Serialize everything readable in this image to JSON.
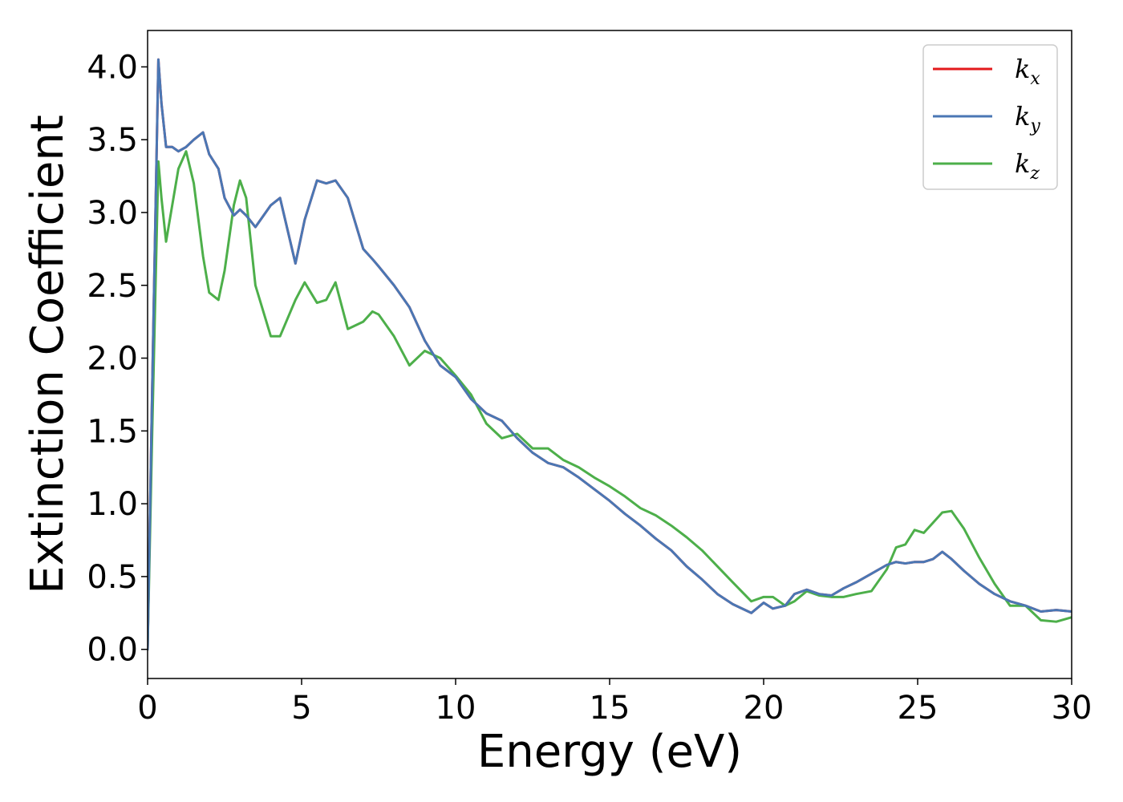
{
  "chart_data": {
    "type": "line",
    "title": "",
    "xlabel": "Energy (eV)",
    "ylabel": "Extinction Coefficient",
    "xlim": [
      0,
      30
    ],
    "ylim": [
      -0.2,
      4.25
    ],
    "xticks": [
      0,
      5,
      10,
      15,
      20,
      25,
      30
    ],
    "xtick_labels": [
      "0",
      "5",
      "10",
      "15",
      "20",
      "25",
      "30"
    ],
    "yticks": [
      0.0,
      0.5,
      1.0,
      1.5,
      2.0,
      2.5,
      3.0,
      3.5,
      4.0
    ],
    "ytick_labels": [
      "0.0",
      "0.5",
      "1.0",
      "1.5",
      "2.0",
      "2.5",
      "3.0",
      "3.5",
      "4.0"
    ],
    "grid": false,
    "legend_position": "top-right",
    "x": [
      0,
      0.15,
      0.35,
      0.45,
      0.6,
      0.8,
      1.0,
      1.25,
      1.5,
      1.8,
      2.0,
      2.3,
      2.5,
      2.8,
      3.0,
      3.2,
      3.5,
      4.0,
      4.3,
      4.8,
      5.1,
      5.5,
      5.8,
      6.1,
      6.5,
      7.0,
      7.3,
      7.5,
      8.0,
      8.5,
      9.0,
      9.5,
      10.0,
      10.5,
      11.0,
      11.5,
      12.0,
      12.5,
      13.0,
      13.5,
      14.0,
      14.5,
      15.0,
      15.5,
      16.0,
      16.5,
      17.0,
      17.5,
      18.0,
      18.5,
      19.0,
      19.6,
      20.0,
      20.3,
      20.7,
      21.0,
      21.4,
      21.8,
      22.2,
      22.6,
      23.0,
      23.5,
      24.0,
      24.3,
      24.6,
      24.9,
      25.2,
      25.5,
      25.8,
      26.1,
      26.5,
      27.0,
      27.5,
      28.0,
      28.5,
      29.0,
      29.5,
      30.0
    ],
    "series": [
      {
        "name": "k_x",
        "legend_main": "k",
        "legend_sub": "x",
        "color": "#e31a1c",
        "values": [
          0.0,
          1.8,
          4.05,
          3.75,
          3.45,
          3.45,
          3.42,
          3.45,
          3.5,
          3.55,
          3.4,
          3.3,
          3.1,
          2.98,
          3.02,
          2.98,
          2.9,
          3.05,
          3.1,
          2.65,
          2.95,
          3.22,
          3.2,
          3.22,
          3.1,
          2.75,
          2.68,
          2.63,
          2.5,
          2.35,
          2.12,
          1.95,
          1.87,
          1.72,
          1.62,
          1.57,
          1.45,
          1.35,
          1.28,
          1.25,
          1.18,
          1.1,
          1.02,
          0.93,
          0.85,
          0.76,
          0.68,
          0.57,
          0.48,
          0.38,
          0.31,
          0.25,
          0.32,
          0.28,
          0.3,
          0.38,
          0.41,
          0.38,
          0.37,
          0.42,
          0.46,
          0.52,
          0.58,
          0.6,
          0.59,
          0.6,
          0.6,
          0.62,
          0.67,
          0.62,
          0.54,
          0.45,
          0.38,
          0.33,
          0.3,
          0.26,
          0.27,
          0.26
        ]
      },
      {
        "name": "k_y",
        "legend_main": "k",
        "legend_sub": "y",
        "color": "#4a77b4",
        "values": [
          0.0,
          1.8,
          4.05,
          3.75,
          3.45,
          3.45,
          3.42,
          3.45,
          3.5,
          3.55,
          3.4,
          3.3,
          3.1,
          2.98,
          3.02,
          2.98,
          2.9,
          3.05,
          3.1,
          2.65,
          2.95,
          3.22,
          3.2,
          3.22,
          3.1,
          2.75,
          2.68,
          2.63,
          2.5,
          2.35,
          2.12,
          1.95,
          1.87,
          1.72,
          1.62,
          1.57,
          1.45,
          1.35,
          1.28,
          1.25,
          1.18,
          1.1,
          1.02,
          0.93,
          0.85,
          0.76,
          0.68,
          0.57,
          0.48,
          0.38,
          0.31,
          0.25,
          0.32,
          0.28,
          0.3,
          0.38,
          0.41,
          0.38,
          0.37,
          0.42,
          0.46,
          0.52,
          0.58,
          0.6,
          0.59,
          0.6,
          0.6,
          0.62,
          0.67,
          0.62,
          0.54,
          0.45,
          0.38,
          0.33,
          0.3,
          0.26,
          0.27,
          0.26
        ]
      },
      {
        "name": "k_z",
        "legend_main": "k",
        "legend_sub": "z",
        "color": "#4daf4a",
        "values": [
          0.0,
          1.5,
          3.35,
          3.1,
          2.8,
          3.05,
          3.3,
          3.42,
          3.2,
          2.7,
          2.45,
          2.4,
          2.6,
          3.05,
          3.22,
          3.1,
          2.5,
          2.15,
          2.15,
          2.4,
          2.52,
          2.38,
          2.4,
          2.52,
          2.2,
          2.25,
          2.32,
          2.3,
          2.15,
          1.95,
          2.05,
          2.0,
          1.88,
          1.75,
          1.55,
          1.45,
          1.48,
          1.38,
          1.38,
          1.3,
          1.25,
          1.18,
          1.12,
          1.05,
          0.97,
          0.92,
          0.85,
          0.77,
          0.68,
          0.57,
          0.46,
          0.33,
          0.36,
          0.36,
          0.3,
          0.33,
          0.4,
          0.37,
          0.36,
          0.36,
          0.38,
          0.4,
          0.55,
          0.7,
          0.72,
          0.82,
          0.8,
          0.87,
          0.94,
          0.95,
          0.83,
          0.63,
          0.45,
          0.3,
          0.3,
          0.2,
          0.19,
          0.22
        ]
      }
    ]
  }
}
